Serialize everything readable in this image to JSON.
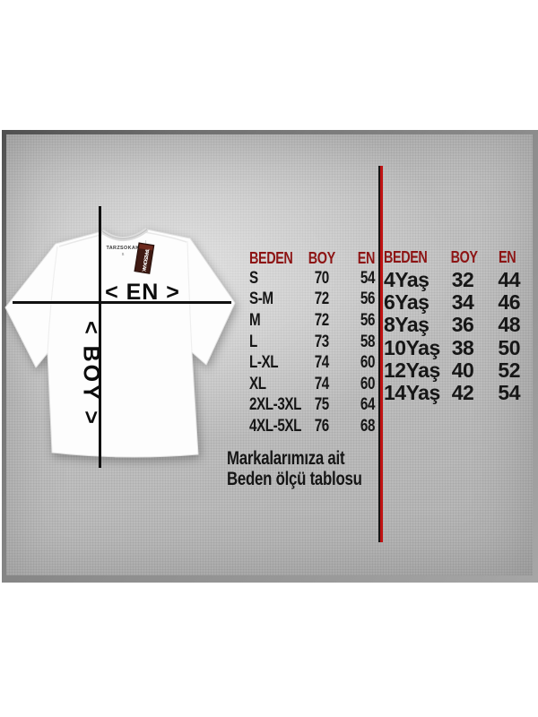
{
  "diagram": {
    "width_label": "< EN >",
    "length_label": "< BOY >",
    "collar_brand": "TARZSOKAK",
    "collar_size": "S",
    "tag_text": "TARZSOKAK"
  },
  "tables": {
    "adult": {
      "headers": [
        "BEDEN",
        "BOY",
        "EN"
      ],
      "rows": [
        [
          "S",
          "70",
          "54"
        ],
        [
          "S-M",
          "72",
          "56"
        ],
        [
          "M",
          "72",
          "56"
        ],
        [
          "L",
          "73",
          "58"
        ],
        [
          "L-XL",
          "74",
          "60"
        ],
        [
          "XL",
          "74",
          "60"
        ],
        [
          "2XL-3XL",
          "75",
          "64"
        ],
        [
          "4XL-5XL",
          "76",
          "68"
        ]
      ]
    },
    "kids": {
      "headers": [
        "BEDEN",
        "BOY",
        "EN"
      ],
      "rows": [
        [
          "4Yaş",
          "32",
          "44"
        ],
        [
          "6Yaş",
          "34",
          "46"
        ],
        [
          "8Yaş",
          "36",
          "48"
        ],
        [
          "10Yaş",
          "38",
          "50"
        ],
        [
          "12Yaş",
          "40",
          "52"
        ],
        [
          "14Yaş",
          "42",
          "54"
        ]
      ]
    }
  },
  "caption": {
    "line1": "Markalarımıza ait",
    "line2": "Beden ölçü tablosu"
  },
  "colors": {
    "header_maroon": "#8d1414",
    "divider_red": "#c01212",
    "divider_black": "#151515",
    "line_black": "#101010",
    "panel_gray": "#bebebe",
    "tag_maroon": "#3f1a13"
  }
}
